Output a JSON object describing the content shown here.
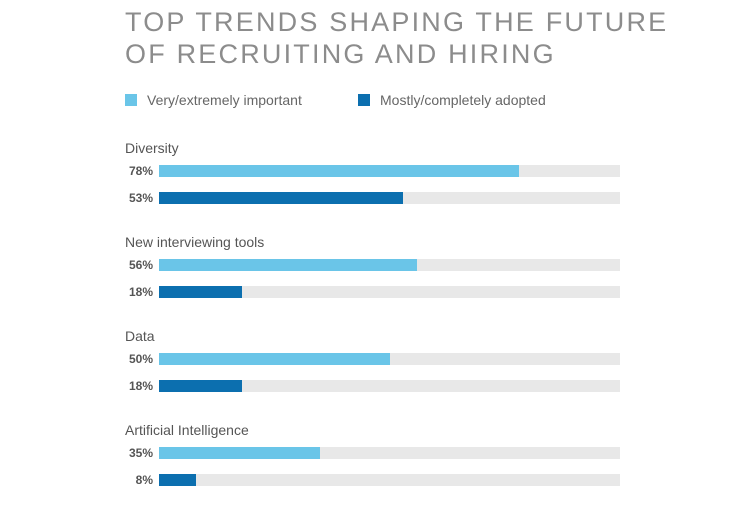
{
  "title_line1": "TOP TRENDS SHAPING THE FUTURE",
  "title_line2": "OF RECRUITING AND HIRING",
  "chart_data": {
    "type": "bar",
    "orientation": "horizontal",
    "title": "TOP TRENDS SHAPING THE FUTURE OF RECRUITING AND HIRING",
    "categories": [
      "Diversity",
      "New interviewing tools",
      "Data",
      "Artificial Intelligence"
    ],
    "series": [
      {
        "name": "Very/extremely important",
        "color": "#6ac5e8",
        "values": [
          78,
          56,
          50,
          35
        ]
      },
      {
        "name": "Mostly/completely adopted",
        "color": "#0c6faf",
        "values": [
          53,
          18,
          18,
          8
        ]
      }
    ],
    "xlim": [
      0,
      100
    ],
    "value_suffix": "%",
    "track_color": "#e8e8e8",
    "legend_position": "top-left",
    "grid": false
  }
}
